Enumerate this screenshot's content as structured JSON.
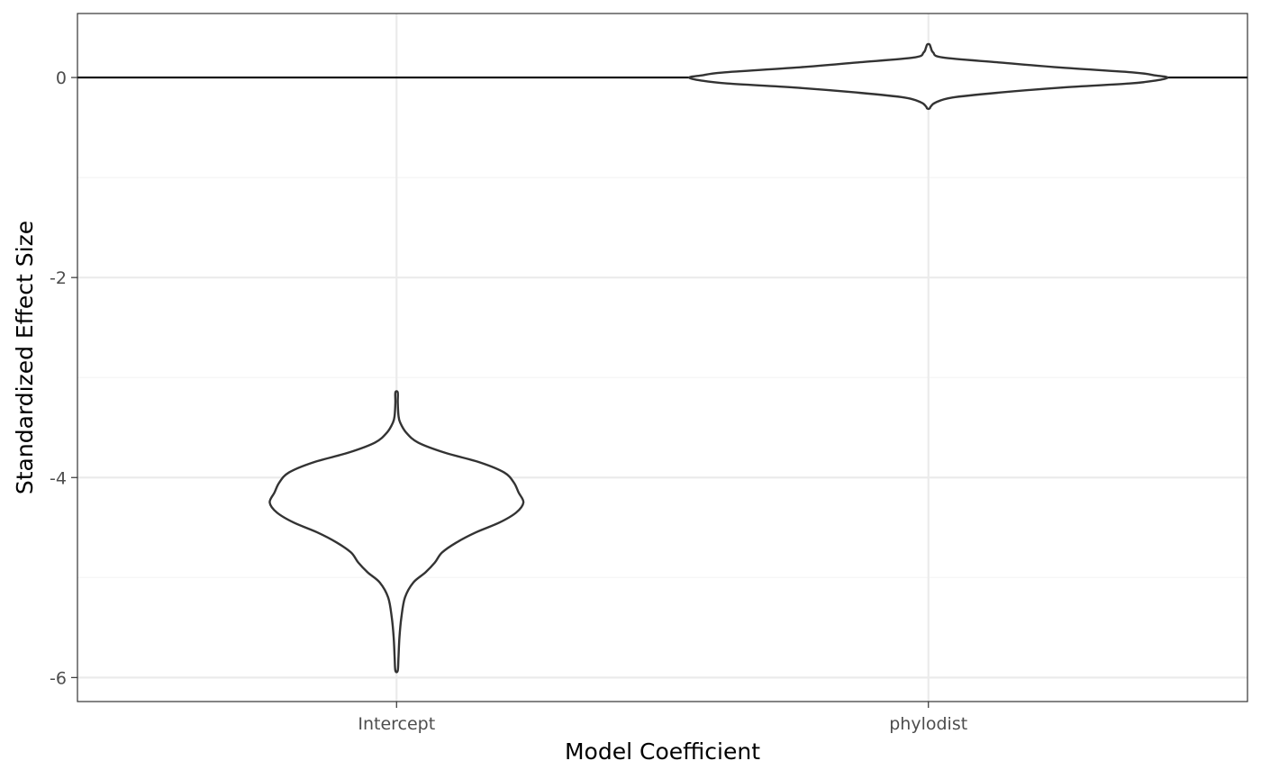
{
  "chart_data": {
    "type": "violin",
    "title": "",
    "xlabel": "Model Coefficient",
    "ylabel": "Standardized Effect Size",
    "categories": [
      "Intercept",
      "phylodist"
    ],
    "ylim": [
      -6.24,
      0.64
    ],
    "yticks": [
      0,
      -2,
      -4,
      -6
    ],
    "ytick_labels": [
      "0",
      "-2",
      "-4",
      "-6"
    ],
    "yminor": [
      -1,
      -3,
      -5
    ],
    "reference_line": 0,
    "grid": true,
    "legend": "none",
    "violins": [
      {
        "category": "Intercept",
        "min": -5.93,
        "max": -3.15,
        "profile": [
          [
            -3.15,
            0.005
          ],
          [
            -3.25,
            0.005
          ],
          [
            -3.38,
            0.008
          ],
          [
            -3.45,
            0.015
          ],
          [
            -3.55,
            0.04
          ],
          [
            -3.65,
            0.09
          ],
          [
            -3.75,
            0.2
          ],
          [
            -3.85,
            0.35
          ],
          [
            -3.95,
            0.45
          ],
          [
            -4.05,
            0.49
          ],
          [
            -4.15,
            0.51
          ],
          [
            -4.25,
            0.53
          ],
          [
            -4.35,
            0.5
          ],
          [
            -4.45,
            0.43
          ],
          [
            -4.55,
            0.33
          ],
          [
            -4.65,
            0.25
          ],
          [
            -4.75,
            0.19
          ],
          [
            -4.85,
            0.16
          ],
          [
            -4.95,
            0.12
          ],
          [
            -5.05,
            0.07
          ],
          [
            -5.2,
            0.035
          ],
          [
            -5.4,
            0.02
          ],
          [
            -5.6,
            0.012
          ],
          [
            -5.8,
            0.008
          ],
          [
            -5.93,
            0.005
          ]
        ]
      },
      {
        "category": "phylodist",
        "min": -0.31,
        "max": 0.33,
        "profile": [
          [
            0.33,
            0.005
          ],
          [
            0.3,
            0.01
          ],
          [
            0.25,
            0.02
          ],
          [
            0.2,
            0.06
          ],
          [
            0.15,
            0.3
          ],
          [
            0.1,
            0.55
          ],
          [
            0.05,
            0.86
          ],
          [
            0.02,
            0.95
          ],
          [
            0.0,
            1.0
          ],
          [
            -0.03,
            0.95
          ],
          [
            -0.06,
            0.84
          ],
          [
            -0.1,
            0.56
          ],
          [
            -0.15,
            0.3
          ],
          [
            -0.2,
            0.1
          ],
          [
            -0.25,
            0.03
          ],
          [
            -0.29,
            0.01
          ],
          [
            -0.31,
            0.005
          ]
        ]
      }
    ],
    "colors": {
      "outline": "#333333",
      "fill": "#ffffff",
      "grid_major": "#ebebeb",
      "grid_minor": "#f4f4f4",
      "panel_border": "#333333",
      "reference_line": "#000000"
    }
  }
}
